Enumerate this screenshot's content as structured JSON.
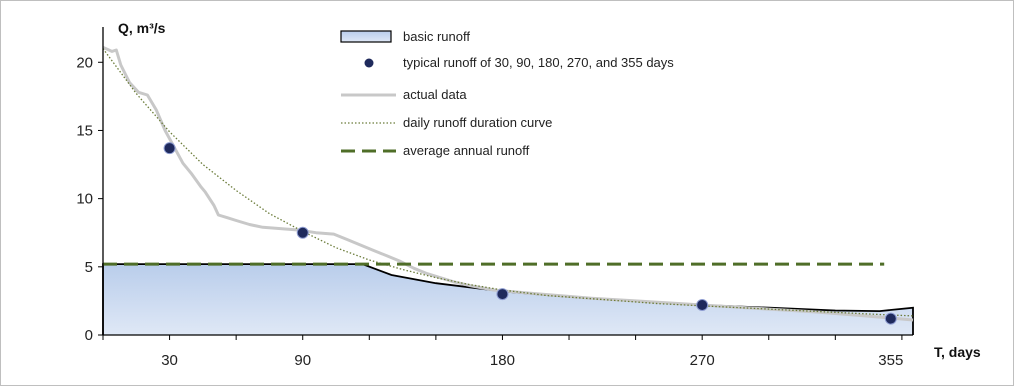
{
  "chart_data": {
    "type": "area",
    "title": "",
    "ylabel": "Q, m³/s",
    "xlabel": "T, days",
    "xlim": [
      0,
      365
    ],
    "ylim": [
      0,
      22
    ],
    "x_ticks": [
      30,
      90,
      180,
      270,
      355
    ],
    "y_ticks": [
      0,
      5,
      10,
      15,
      20
    ],
    "grid": false,
    "legend_position": "top-center",
    "series": [
      {
        "name": "basic runoff",
        "kind": "area",
        "color": "#c5d7ef",
        "edge_color": "#000000",
        "points": [
          [
            0,
            5.2
          ],
          [
            117,
            5.2
          ],
          [
            130,
            4.4
          ],
          [
            150,
            3.8
          ],
          [
            180,
            3.2
          ],
          [
            210,
            2.8
          ],
          [
            240,
            2.5
          ],
          [
            270,
            2.2
          ],
          [
            300,
            2.0
          ],
          [
            330,
            1.8
          ],
          [
            350,
            1.75
          ],
          [
            365,
            2.0
          ]
        ]
      },
      {
        "name": "typical runoff of 30, 90, 180, 270, and 355 days",
        "kind": "scatter",
        "color": "#1f2a5c",
        "points": [
          [
            30,
            13.7
          ],
          [
            90,
            7.5
          ],
          [
            180,
            3.0
          ],
          [
            270,
            2.2
          ],
          [
            355,
            1.2
          ]
        ]
      },
      {
        "name": "actual data",
        "kind": "line",
        "color": "#c8c8c8",
        "points": [
          [
            0,
            21.1
          ],
          [
            4,
            20.8
          ],
          [
            6,
            20.9
          ],
          [
            8,
            19.8
          ],
          [
            12,
            18.5
          ],
          [
            16,
            17.8
          ],
          [
            20,
            17.6
          ],
          [
            24,
            16.5
          ],
          [
            28,
            15.0
          ],
          [
            32,
            13.8
          ],
          [
            36,
            12.6
          ],
          [
            40,
            11.8
          ],
          [
            44,
            10.9
          ],
          [
            46,
            10.5
          ],
          [
            50,
            9.5
          ],
          [
            52,
            8.8
          ],
          [
            56,
            8.6
          ],
          [
            60,
            8.4
          ],
          [
            66,
            8.1
          ],
          [
            72,
            7.9
          ],
          [
            80,
            7.8
          ],
          [
            88,
            7.7
          ],
          [
            96,
            7.5
          ],
          [
            104,
            7.4
          ],
          [
            110,
            7.0
          ],
          [
            116,
            6.6
          ],
          [
            122,
            6.2
          ],
          [
            128,
            5.8
          ],
          [
            134,
            5.4
          ],
          [
            140,
            4.9
          ],
          [
            146,
            4.5
          ],
          [
            152,
            4.2
          ],
          [
            158,
            3.9
          ],
          [
            166,
            3.6
          ],
          [
            176,
            3.3
          ],
          [
            190,
            3.1
          ],
          [
            205,
            2.9
          ],
          [
            220,
            2.7
          ],
          [
            240,
            2.5
          ],
          [
            260,
            2.3
          ],
          [
            280,
            2.1
          ],
          [
            300,
            1.9
          ],
          [
            320,
            1.7
          ],
          [
            340,
            1.45
          ],
          [
            355,
            1.25
          ],
          [
            365,
            1.1
          ]
        ]
      },
      {
        "name": "daily runoff duration curve",
        "kind": "line",
        "color": "#6b7c3a",
        "points": [
          [
            0,
            21.0
          ],
          [
            15,
            17.7
          ],
          [
            30,
            14.9
          ],
          [
            45,
            12.5
          ],
          [
            60,
            10.6
          ],
          [
            75,
            8.9
          ],
          [
            90,
            7.6
          ],
          [
            105,
            6.4
          ],
          [
            120,
            5.5
          ],
          [
            135,
            4.8
          ],
          [
            150,
            4.2
          ],
          [
            165,
            3.7
          ],
          [
            180,
            3.3
          ],
          [
            200,
            2.9
          ],
          [
            225,
            2.6
          ],
          [
            250,
            2.3
          ],
          [
            275,
            2.1
          ],
          [
            300,
            1.9
          ],
          [
            325,
            1.7
          ],
          [
            350,
            1.5
          ],
          [
            365,
            1.4
          ]
        ]
      },
      {
        "name": "average annual runoff",
        "kind": "line",
        "color": "#4f6e28",
        "points": [
          [
            0,
            5.2
          ],
          [
            352,
            5.2
          ]
        ]
      }
    ]
  }
}
